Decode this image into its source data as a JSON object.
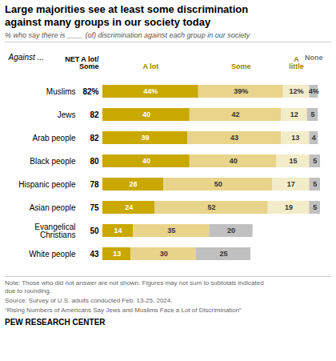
{
  "chart_data": {
    "type": "bar",
    "orientation": "horizontal",
    "stacked": true,
    "data_labels": true,
    "tick_labels": "y",
    "grid": false,
    "title": "Large majorities see at least some discrimination\nagainst many groups in our society today",
    "subtitle": "% who say there is ____ (of) discrimination against each group in our society",
    "category_header": "Against ...",
    "categories": [
      "Muslims",
      "Jews",
      "Arab people",
      "Black people",
      "Hispanic people",
      "Asian people",
      "Evangelical\nChristians",
      "White people"
    ],
    "xlim": [
      0,
      100
    ],
    "series": [
      {
        "name": "A lot",
        "color": "#c9a800",
        "values": [
          44,
          40,
          39,
          40,
          28,
          24,
          14,
          13
        ],
        "value_labels": [
          "44%",
          "40",
          "39",
          "40",
          "28",
          "24",
          "14",
          "13"
        ]
      },
      {
        "name": "Some",
        "color": "#e8d48a",
        "values": [
          39,
          42,
          43,
          40,
          50,
          52,
          35,
          30
        ],
        "value_labels": [
          "39%",
          "42",
          "43",
          "40",
          "50",
          "52",
          "35",
          "30"
        ]
      },
      {
        "name": "A\nlittle",
        "colors": [
          "#f2ecc8",
          "#f2ecc8",
          "#f2ecc8",
          "#f2ecc8",
          "#f2ecc8",
          "#f2ecc8",
          "#c0c0c0",
          "#c0c0c0"
        ],
        "values": [
          12,
          12,
          13,
          15,
          17,
          19,
          20,
          25
        ],
        "value_labels": [
          "12%",
          "12",
          "13",
          "15",
          "17",
          "19",
          "20",
          "25"
        ]
      },
      {
        "name": "None",
        "color": "#c0c0c0",
        "values": [
          4,
          5,
          4,
          5,
          5,
          5,
          0,
          0
        ],
        "value_labels": [
          "4%",
          "5",
          "4",
          "5",
          "5",
          "5",
          null,
          null
        ]
      }
    ],
    "net": {
      "name": "NET A lot/\nSome",
      "values": [
        82,
        82,
        82,
        80,
        78,
        75,
        50,
        43
      ],
      "value_labels": [
        "82%",
        "82",
        "82",
        "80",
        "78",
        "75",
        "50",
        "43"
      ]
    },
    "notes": [
      "Note: Those who did not answer are not shown. Figures may not sum to subtotals indicated\ndue to rounding.",
      "Source: Survey of U.S. adults conducted Feb. 13-25, 2024.",
      "“Rising Numbers of Americans Say Jews and Muslims Face a Lot of Discrimination”"
    ],
    "brand": "PEW RESEARCH CENTER"
  }
}
